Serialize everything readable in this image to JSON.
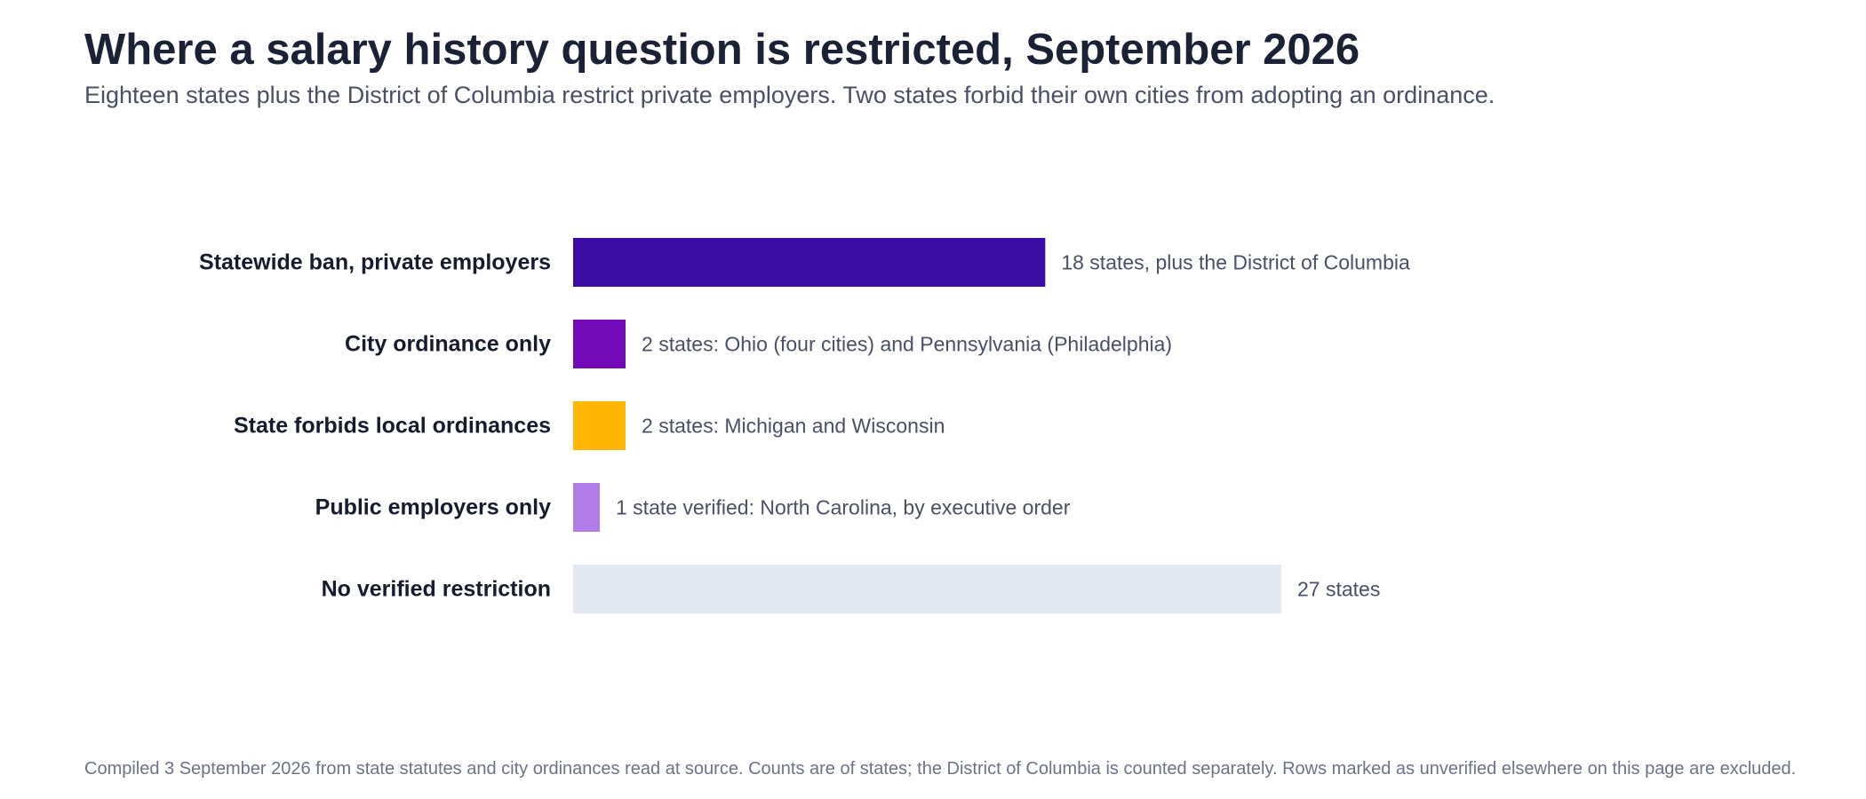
{
  "header": {
    "title": "Where a salary history question is restricted, September 2026",
    "subtitle": "Eighteen states plus the District of Columbia restrict private employers. Two states forbid their own cities from adopting an ordinance."
  },
  "footer": {
    "note": "Compiled 3 September 2026 from state statutes and city ordinances read at source. Counts are of states; the District of Columbia is counted separately. Rows marked as unverified elsewhere on this page are excluded."
  },
  "chart_data": {
    "type": "bar",
    "orientation": "horizontal",
    "categories": [
      "Statewide ban, private employers",
      "City ordinance only",
      "State forbids local ordinances",
      "Public employers only",
      "No verified restriction"
    ],
    "values": [
      18,
      2,
      2,
      1,
      27
    ],
    "value_labels": [
      "18 states, plus the District of Columbia",
      "2 states: Ohio (four cities) and Pennsylvania (Philadelphia)",
      "2 states: Michigan and Wisconsin",
      "1 state verified: North Carolina, by executive order",
      "27 states"
    ],
    "colors": [
      "#3a0ca3",
      "#7209b7",
      "#ffb703",
      "#b07ce8",
      "#e4e8f2"
    ],
    "value_label_colors": [
      "#4a5064",
      "#4a5064",
      "#8a5e00",
      "#4a5064",
      "#4a5064"
    ],
    "xlim": [
      0,
      27
    ],
    "grid": false,
    "legend": "none"
  }
}
